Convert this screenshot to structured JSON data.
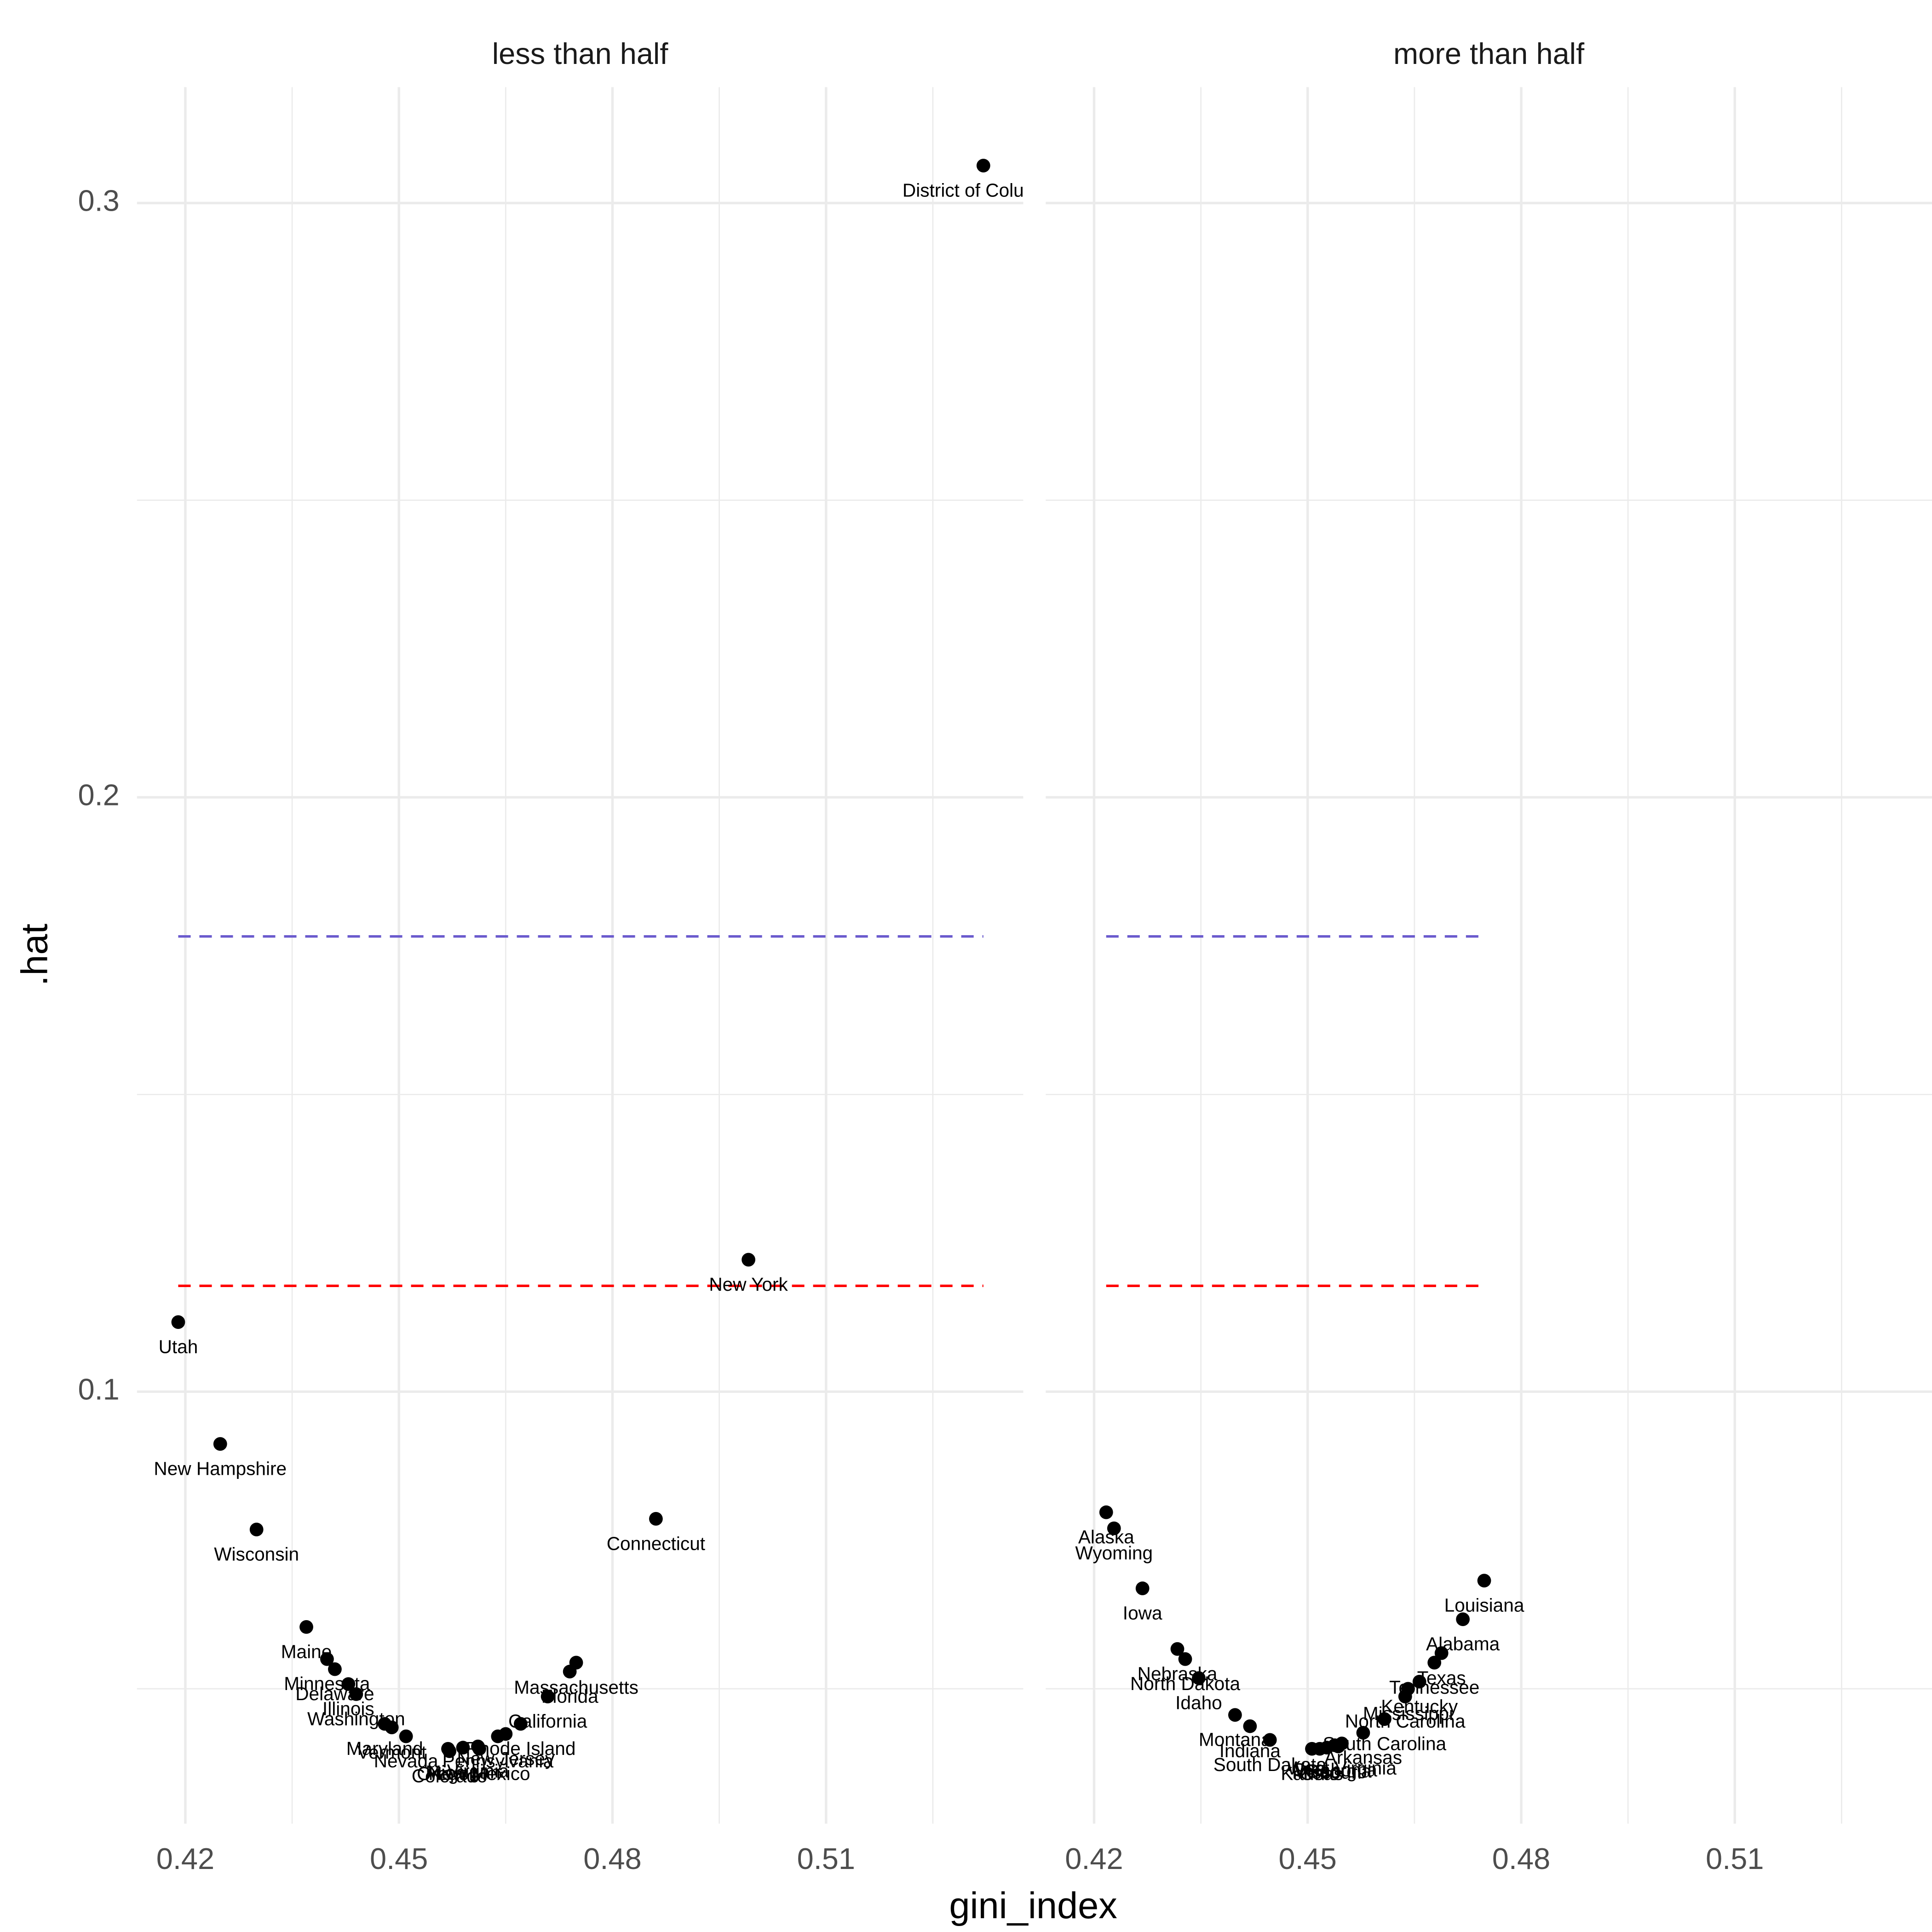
{
  "chart_data": {
    "type": "scatter",
    "x_label": "gini_index",
    "y_label": ".hat",
    "xlim": [
      0.4132,
      0.5377
    ],
    "ylim": [
      0.0273,
      0.3195
    ],
    "xticks": [
      0.42,
      0.45,
      0.48,
      0.51
    ],
    "yticks": [
      0.1,
      0.2,
      0.3
    ],
    "xminorticks": [
      0.435,
      0.465,
      0.495,
      0.525
    ],
    "yminorticks": [
      0.05,
      0.15,
      0.25
    ],
    "grid": true,
    "point_color": "#000000",
    "hlines": [
      {
        "value": 0.1766,
        "color": "#6a5acd"
      },
      {
        "value": 0.1178,
        "color": "#ff0000"
      }
    ],
    "panels": [
      {
        "title": "less than half",
        "labels": [
          "Utah",
          "New Hampshire",
          "Wisconsin",
          "Maine",
          "Minnesota",
          "Delaware",
          "Illinois",
          "Washington",
          "Maryland",
          "Vermont",
          "Nevada",
          "Oregon",
          "Michigan",
          "Colorado",
          "Virginia",
          "New Mexico",
          "Pennsylvania",
          "New Jersey",
          "Rhode Island",
          "California",
          "Florida",
          "Massachusetts",
          "Connecticut",
          "New York",
          "District of Columbia"
        ],
        "x": [
          0.419,
          0.4249,
          0.43,
          0.437,
          0.4399,
          0.441,
          0.4429,
          0.444,
          0.448,
          0.449,
          0.451,
          0.4569,
          0.459,
          0.4571,
          0.4611,
          0.4613,
          0.4639,
          0.465,
          0.4671,
          0.4709,
          0.474,
          0.4749,
          0.4861,
          0.4991,
          0.5321
        ],
        "y": [
          0.1117,
          0.0912,
          0.0768,
          0.0604,
          0.055,
          0.0533,
          0.0508,
          0.0491,
          0.0441,
          0.0435,
          0.042,
          0.0399,
          0.0401,
          0.0395,
          0.0403,
          0.0399,
          0.042,
          0.0424,
          0.0441,
          0.0487,
          0.0529,
          0.0544,
          0.0786,
          0.1222,
          0.3063
        ]
      },
      {
        "title": "more than half",
        "labels": [
          "Alaska",
          "Wyoming",
          "Iowa",
          "Nebraska",
          "North Dakota",
          "Idaho",
          "Montana",
          "Indiana",
          "South Dakota",
          "Kansas",
          "Ohio",
          "Missouri",
          "Oklahoma",
          "Georgia",
          "West Virginia",
          "Arkansas",
          "South Carolina",
          "North Carolina",
          "Mississippi",
          "Kentucky",
          "Tennessee",
          "Texas",
          "Alabama",
          "Louisiana"
        ],
        "x": [
          0.4217,
          0.4228,
          0.4268,
          0.4317,
          0.4328,
          0.4347,
          0.4398,
          0.4419,
          0.4447,
          0.4506,
          0.4517,
          0.4527,
          0.4538,
          0.4543,
          0.4548,
          0.4578,
          0.4608,
          0.4637,
          0.4641,
          0.4657,
          0.4678,
          0.4688,
          0.4718,
          0.4748
        ],
        "y": [
          0.0797,
          0.077,
          0.0669,
          0.0567,
          0.055,
          0.0518,
          0.0456,
          0.0437,
          0.0414,
          0.0399,
          0.0399,
          0.0401,
          0.0405,
          0.0403,
          0.0408,
          0.0426,
          0.0449,
          0.0487,
          0.05,
          0.0512,
          0.0544,
          0.056,
          0.0617,
          0.0682
        ]
      }
    ]
  }
}
